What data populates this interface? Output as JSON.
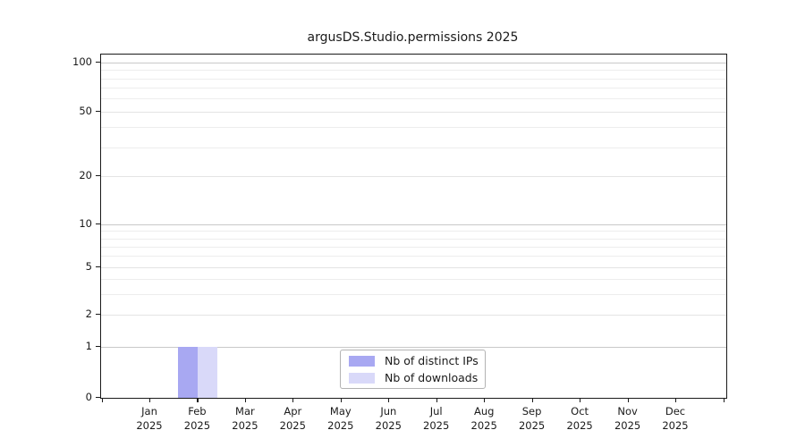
{
  "title": "argusDS.Studio.permissions 2025",
  "chart_data": {
    "type": "bar",
    "title": "argusDS.Studio.permissions 2025",
    "categories": [
      "Jan 2025",
      "Feb 2025",
      "Mar 2025",
      "Apr 2025",
      "May 2025",
      "Jun 2025",
      "Jul 2025",
      "Aug 2025",
      "Sep 2025",
      "Oct 2025",
      "Nov 2025",
      "Dec 2025"
    ],
    "series": [
      {
        "name": "Nb of distinct IPs",
        "color": "#a8a8f2",
        "values": [
          0,
          1,
          0,
          0,
          0,
          0,
          0,
          0,
          0,
          0,
          0,
          0
        ]
      },
      {
        "name": "Nb of downloads",
        "color": "#d9d9f9",
        "values": [
          0,
          1,
          0,
          0,
          0,
          0,
          0,
          0,
          0,
          0,
          0,
          0
        ]
      }
    ],
    "yscale": "symlog",
    "y_ticks": [
      0,
      1,
      2,
      5,
      10,
      20,
      50,
      100
    ],
    "y_tick_labels": [
      "0",
      "1",
      "2",
      "5",
      "10",
      "20",
      "50",
      "100"
    ],
    "y_minor_gridlines": [
      3,
      4,
      6,
      7,
      8,
      9,
      30,
      40,
      60,
      70,
      80,
      90
    ],
    "ylim": [
      0,
      110
    ],
    "xlabel": "",
    "ylabel": "",
    "grid": "horizontal",
    "legend_position": "lower-center-inside"
  },
  "legend": {
    "items": [
      "Nb of distinct IPs",
      "Nb of downloads"
    ]
  },
  "colors": {
    "bar_distinct_ips": "#a8a8f2",
    "bar_downloads": "#d9d9f9",
    "grid_decade": "#c9c9c9",
    "grid_major": "#e4e4e4",
    "grid_minor": "#ededed",
    "spine": "#1a1a1a"
  }
}
